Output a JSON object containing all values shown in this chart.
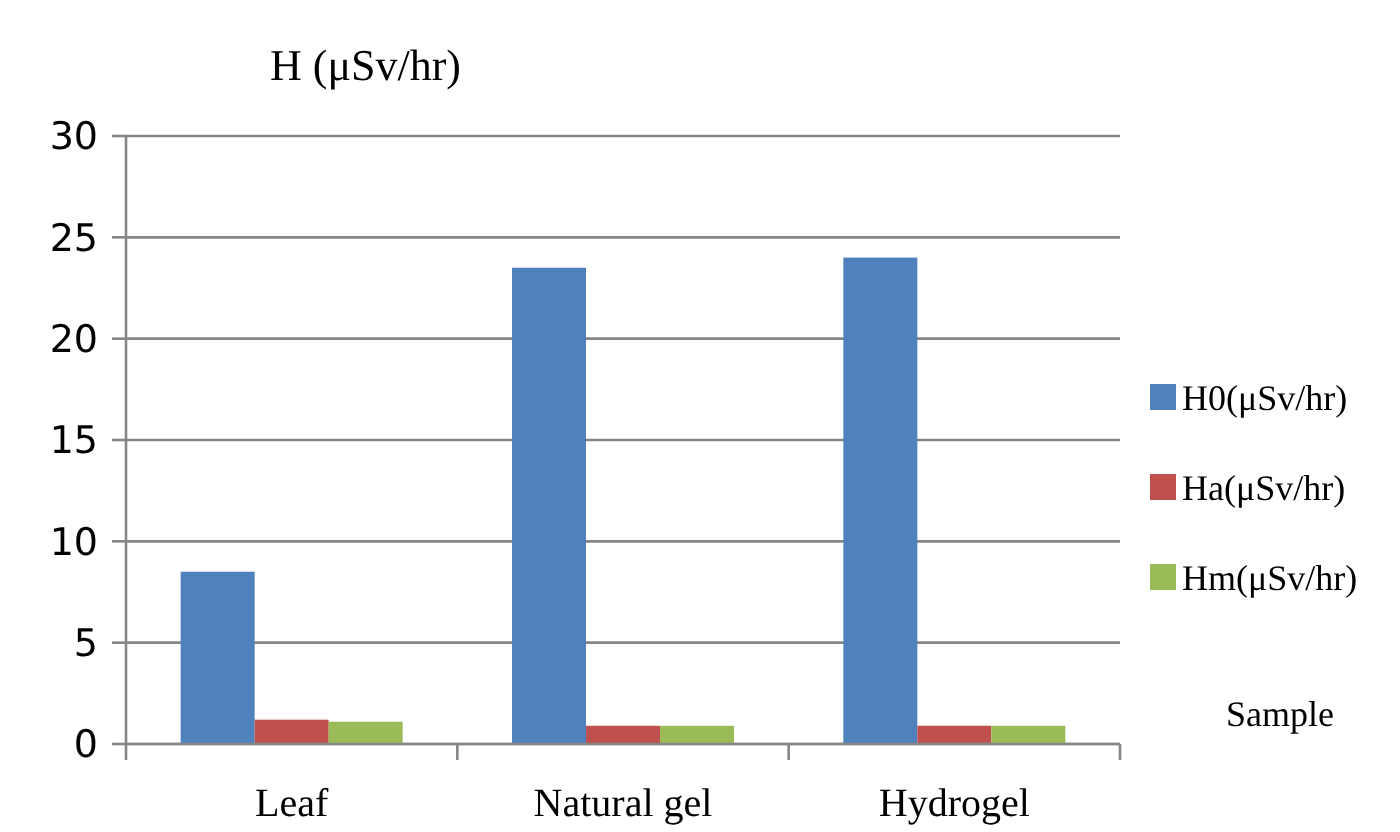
{
  "chart_data": {
    "type": "bar",
    "ylabel": "H (μSv/hr)",
    "xlabel": "Sample",
    "categories": [
      "Leaf",
      "Natural gel",
      "Hydrogel"
    ],
    "series": [
      {
        "name": "H0(μSv/hr)",
        "color": "#4f81bd",
        "values": [
          8.5,
          23.5,
          24
        ]
      },
      {
        "name": "Ha(μSv/hr)",
        "color": "#c0504d",
        "values": [
          1.2,
          0.9,
          0.9
        ]
      },
      {
        "name": "Hm(μSv/hr)",
        "color": "#9bbb59",
        "values": [
          1.1,
          0.9,
          0.9
        ]
      }
    ],
    "ylim": [
      0,
      30
    ],
    "yticks": [
      0,
      5,
      10,
      15,
      20,
      25,
      30
    ],
    "grid": "y",
    "legend": "right"
  }
}
